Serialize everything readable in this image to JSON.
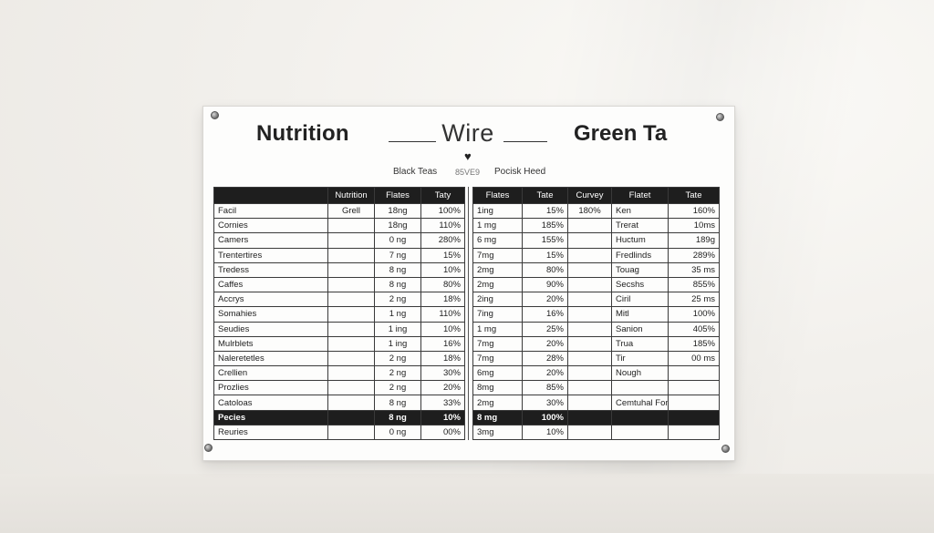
{
  "board": {
    "title_left": "Nutrition",
    "title_mid": "Wire",
    "title_right": "Green Ta",
    "heart": "♥",
    "sub_left": "Black Teas",
    "sub_code": "85VE9",
    "sub_right": "Pocisk Heed"
  },
  "left_table": {
    "headers": [
      "",
      "Nutrition",
      "Flates",
      "Taty"
    ],
    "rows": [
      [
        "Facil",
        "Grell",
        "18ng",
        "100%"
      ],
      [
        "Cornies",
        "",
        "18ng",
        "110%"
      ],
      [
        "Camers",
        "",
        "0 ng",
        "280%"
      ],
      [
        "Trentertires",
        "",
        "7 ng",
        "15%"
      ],
      [
        "Tredess",
        "",
        "8 ng",
        "10%"
      ],
      [
        "Caffes",
        "",
        "8 ng",
        "80%"
      ],
      [
        "Accrys",
        "",
        "2 ng",
        "18%"
      ],
      [
        "Somahies",
        "",
        "1 ng",
        "110%"
      ],
      [
        "Seudies",
        "",
        "1 ing",
        "10%"
      ],
      [
        "Mulrblets",
        "",
        "1 ing",
        "16%"
      ],
      [
        "Naleretetles",
        "",
        "2 ng",
        "18%"
      ],
      [
        "Crellien",
        "",
        "2 ng",
        "30%"
      ],
      [
        "Prozlies",
        "",
        "2 ng",
        "20%"
      ],
      [
        "Catoloas",
        "",
        "8 ng",
        "33%"
      ],
      [
        "Pecies",
        "",
        "8 ng",
        "10%"
      ],
      [
        "Reuries",
        "",
        "0 ng",
        "00%"
      ]
    ]
  },
  "right_table": {
    "headers": [
      "Flates",
      "Tate",
      "Curvey",
      "Flatet",
      "Tate"
    ],
    "rows": [
      [
        "1ing",
        "15%",
        "180%",
        "Ken",
        "160%"
      ],
      [
        "1 mg",
        "185%",
        "",
        "Trerat",
        "10ms"
      ],
      [
        "6 mg",
        "155%",
        "",
        "Huctum",
        "189g"
      ],
      [
        "7mg",
        "15%",
        "",
        "Fredlinds",
        "289%"
      ],
      [
        "2mg",
        "80%",
        "",
        "Touag",
        "35 ms"
      ],
      [
        "2mg",
        "90%",
        "",
        "Secshs",
        "855%"
      ],
      [
        "2ing",
        "20%",
        "",
        "Ciril",
        "25 ms"
      ],
      [
        "7ing",
        "16%",
        "",
        "Mitl",
        "100%"
      ],
      [
        "1 mg",
        "25%",
        "",
        "Sanion",
        "405%"
      ],
      [
        "7mg",
        "20%",
        "",
        "Trua",
        "185%"
      ],
      [
        "7mg",
        "28%",
        "",
        "Tir",
        "00 ms"
      ],
      [
        "6mg",
        "20%",
        "",
        "Nough",
        ""
      ],
      [
        "8mg",
        "85%",
        "",
        "",
        ""
      ],
      [
        "2mg",
        "30%",
        "",
        "Cemtuhal Fong",
        ""
      ],
      [
        "8 mg",
        "100%",
        "",
        "",
        ""
      ],
      [
        "3mg",
        "10%",
        "",
        "",
        ""
      ]
    ]
  }
}
